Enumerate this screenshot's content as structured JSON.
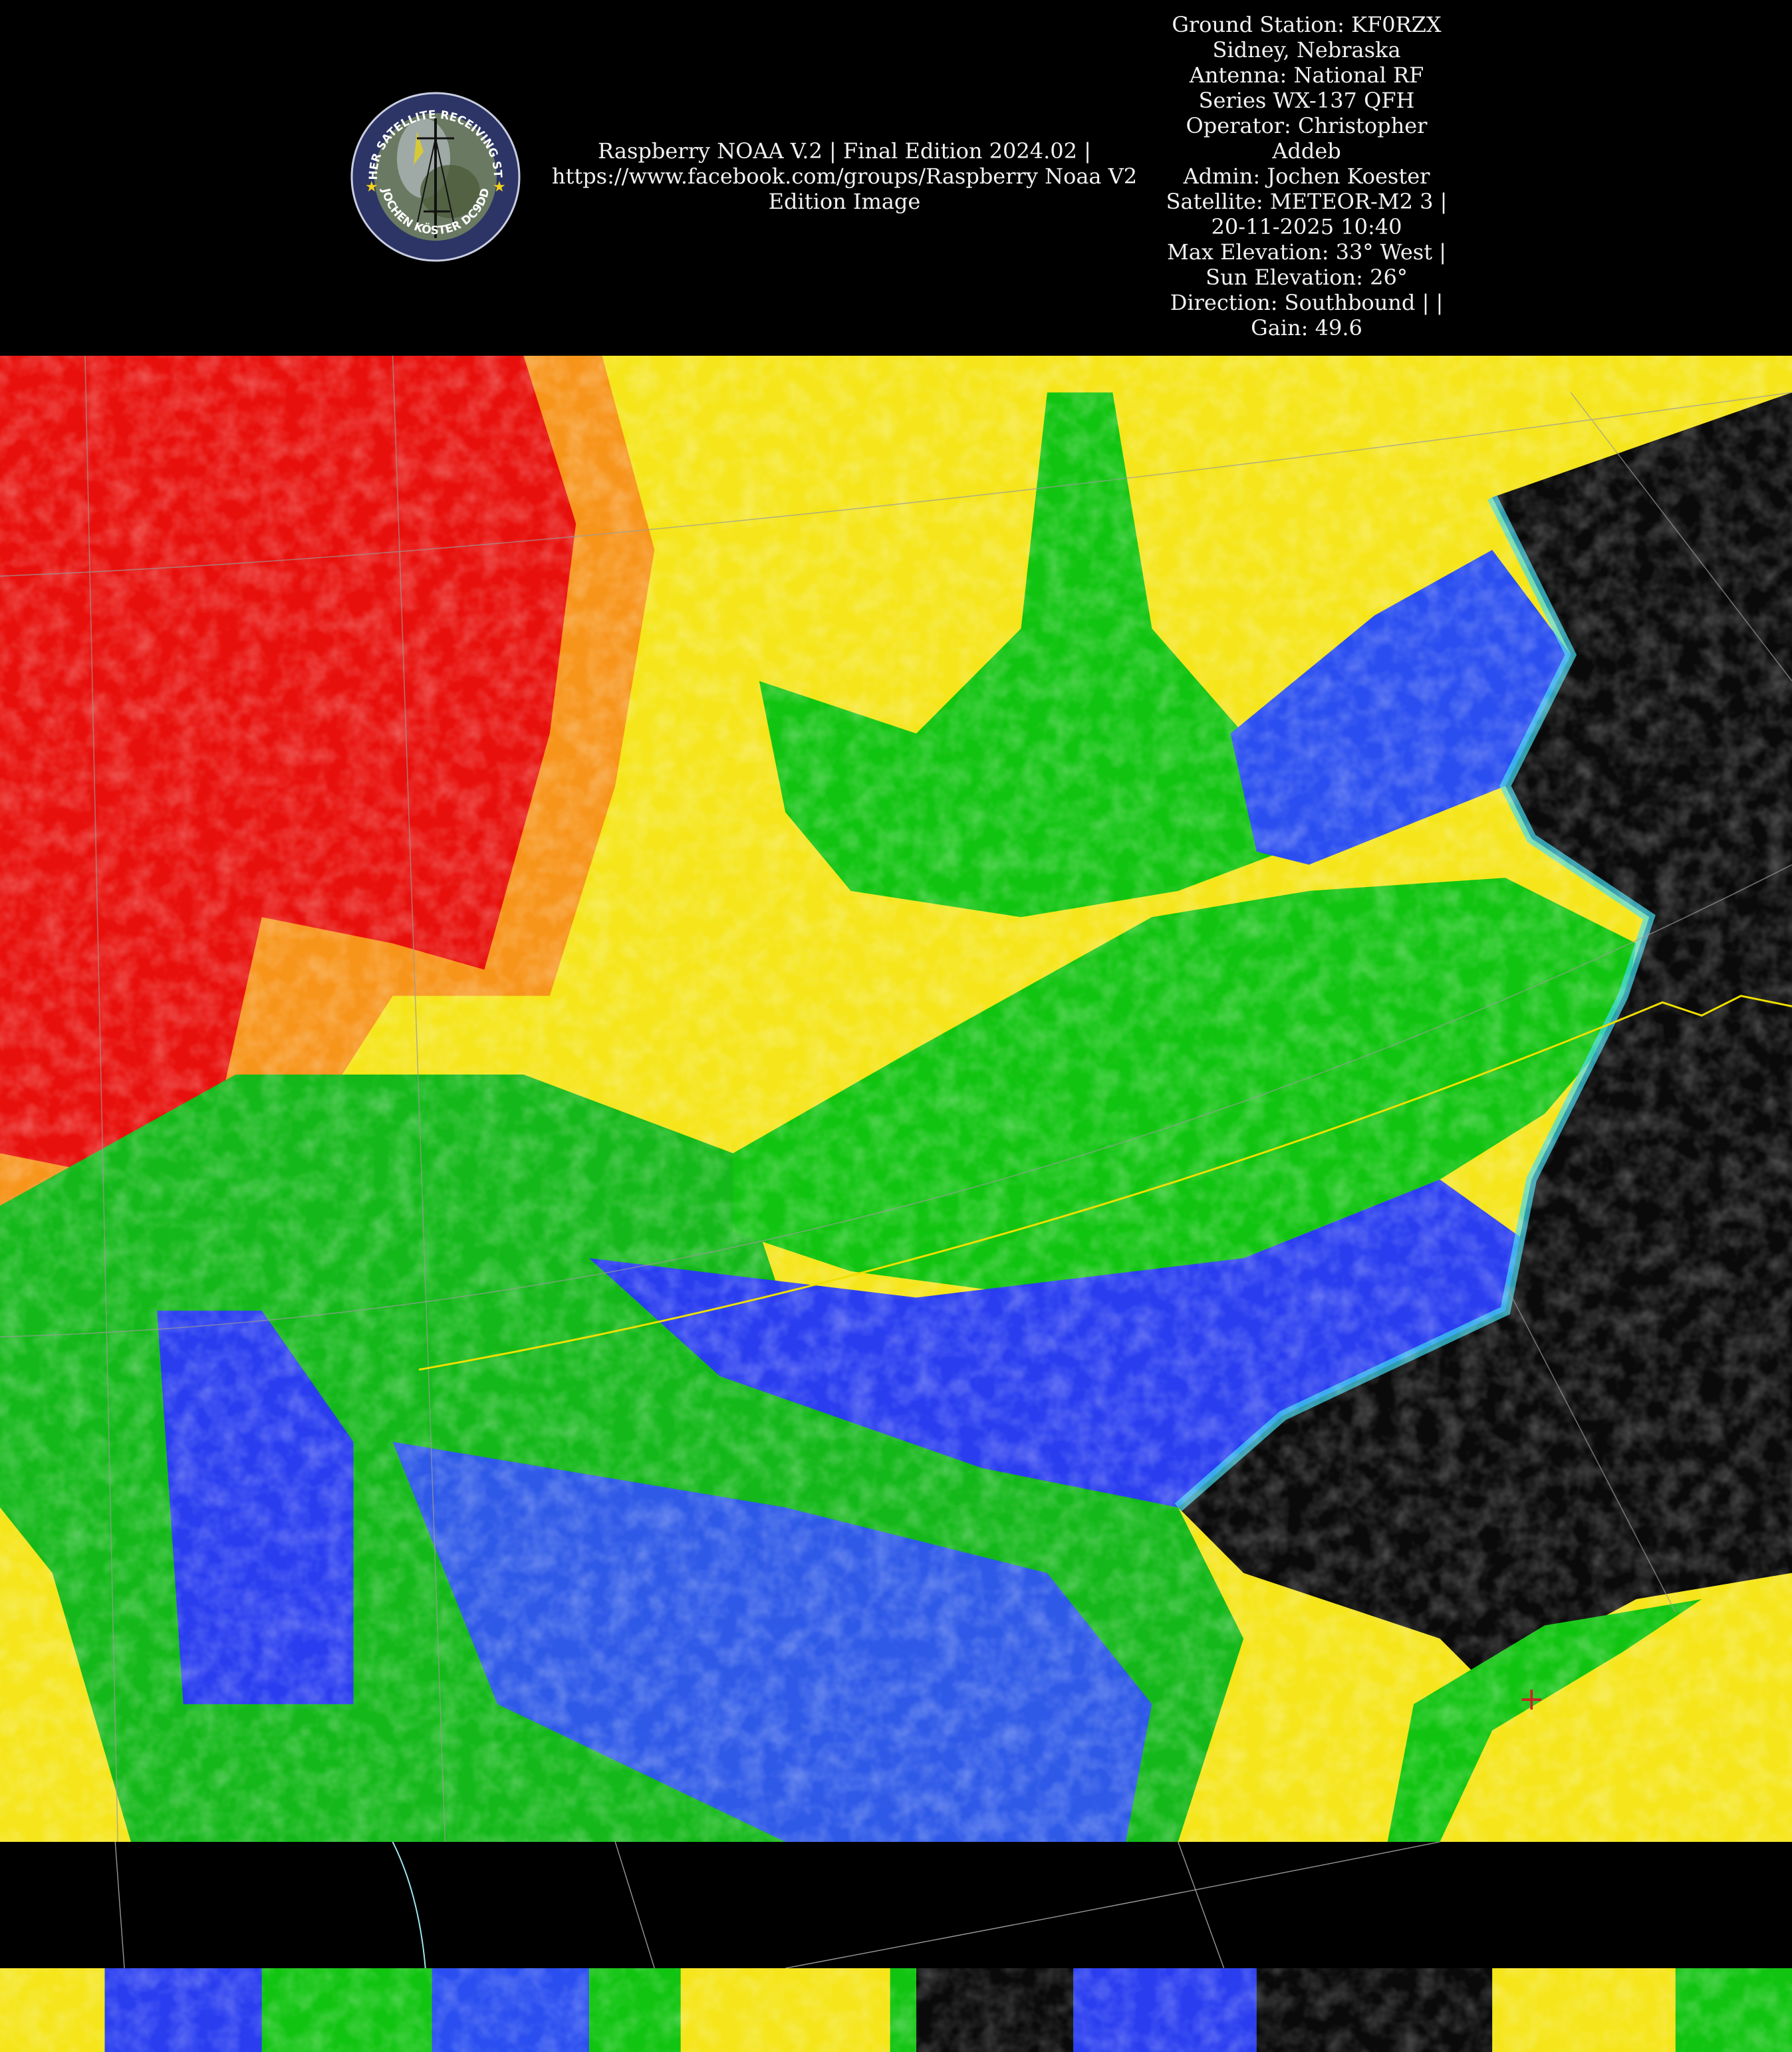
{
  "header": {
    "logo": {
      "text_top": "WEATHER SATELLITE RECEIVING STATION",
      "text_bottom": "JOCHEN KÖSTER DC9DD"
    },
    "center_lines": [
      "Raspberry NOAA V.2 | Final Edition 2024.02 |",
      "https://www.facebook.com/groups/Raspberry Noaa V2",
      "Edition Image"
    ],
    "info_lines": [
      "Ground Station: KF0RZX",
      "Sidney, Nebraska",
      "Antenna: National RF",
      "Series WX-137 QFH",
      "Operator: Christopher",
      "Addeb",
      "Admin: Jochen Koester",
      "Satellite: METEOR-M2 3 |",
      "20-11-2025 10:40",
      "Max Elevation: 33° West |",
      "Sun Elevation: 26°",
      "Direction: Southbound | |",
      "Gain: 49.6"
    ]
  },
  "image": {
    "type": "false-color thermal satellite image",
    "palette": {
      "red": "#e8100c",
      "orange": "#f77a12",
      "yellow": "#f5e51a",
      "green": "#12c412",
      "blue": "#2a3ef0",
      "cyan": "#3fd8f0",
      "clear": "#0a0a0a",
      "border_line": "#f0e000",
      "grid_line": "#9a9a9a"
    }
  }
}
